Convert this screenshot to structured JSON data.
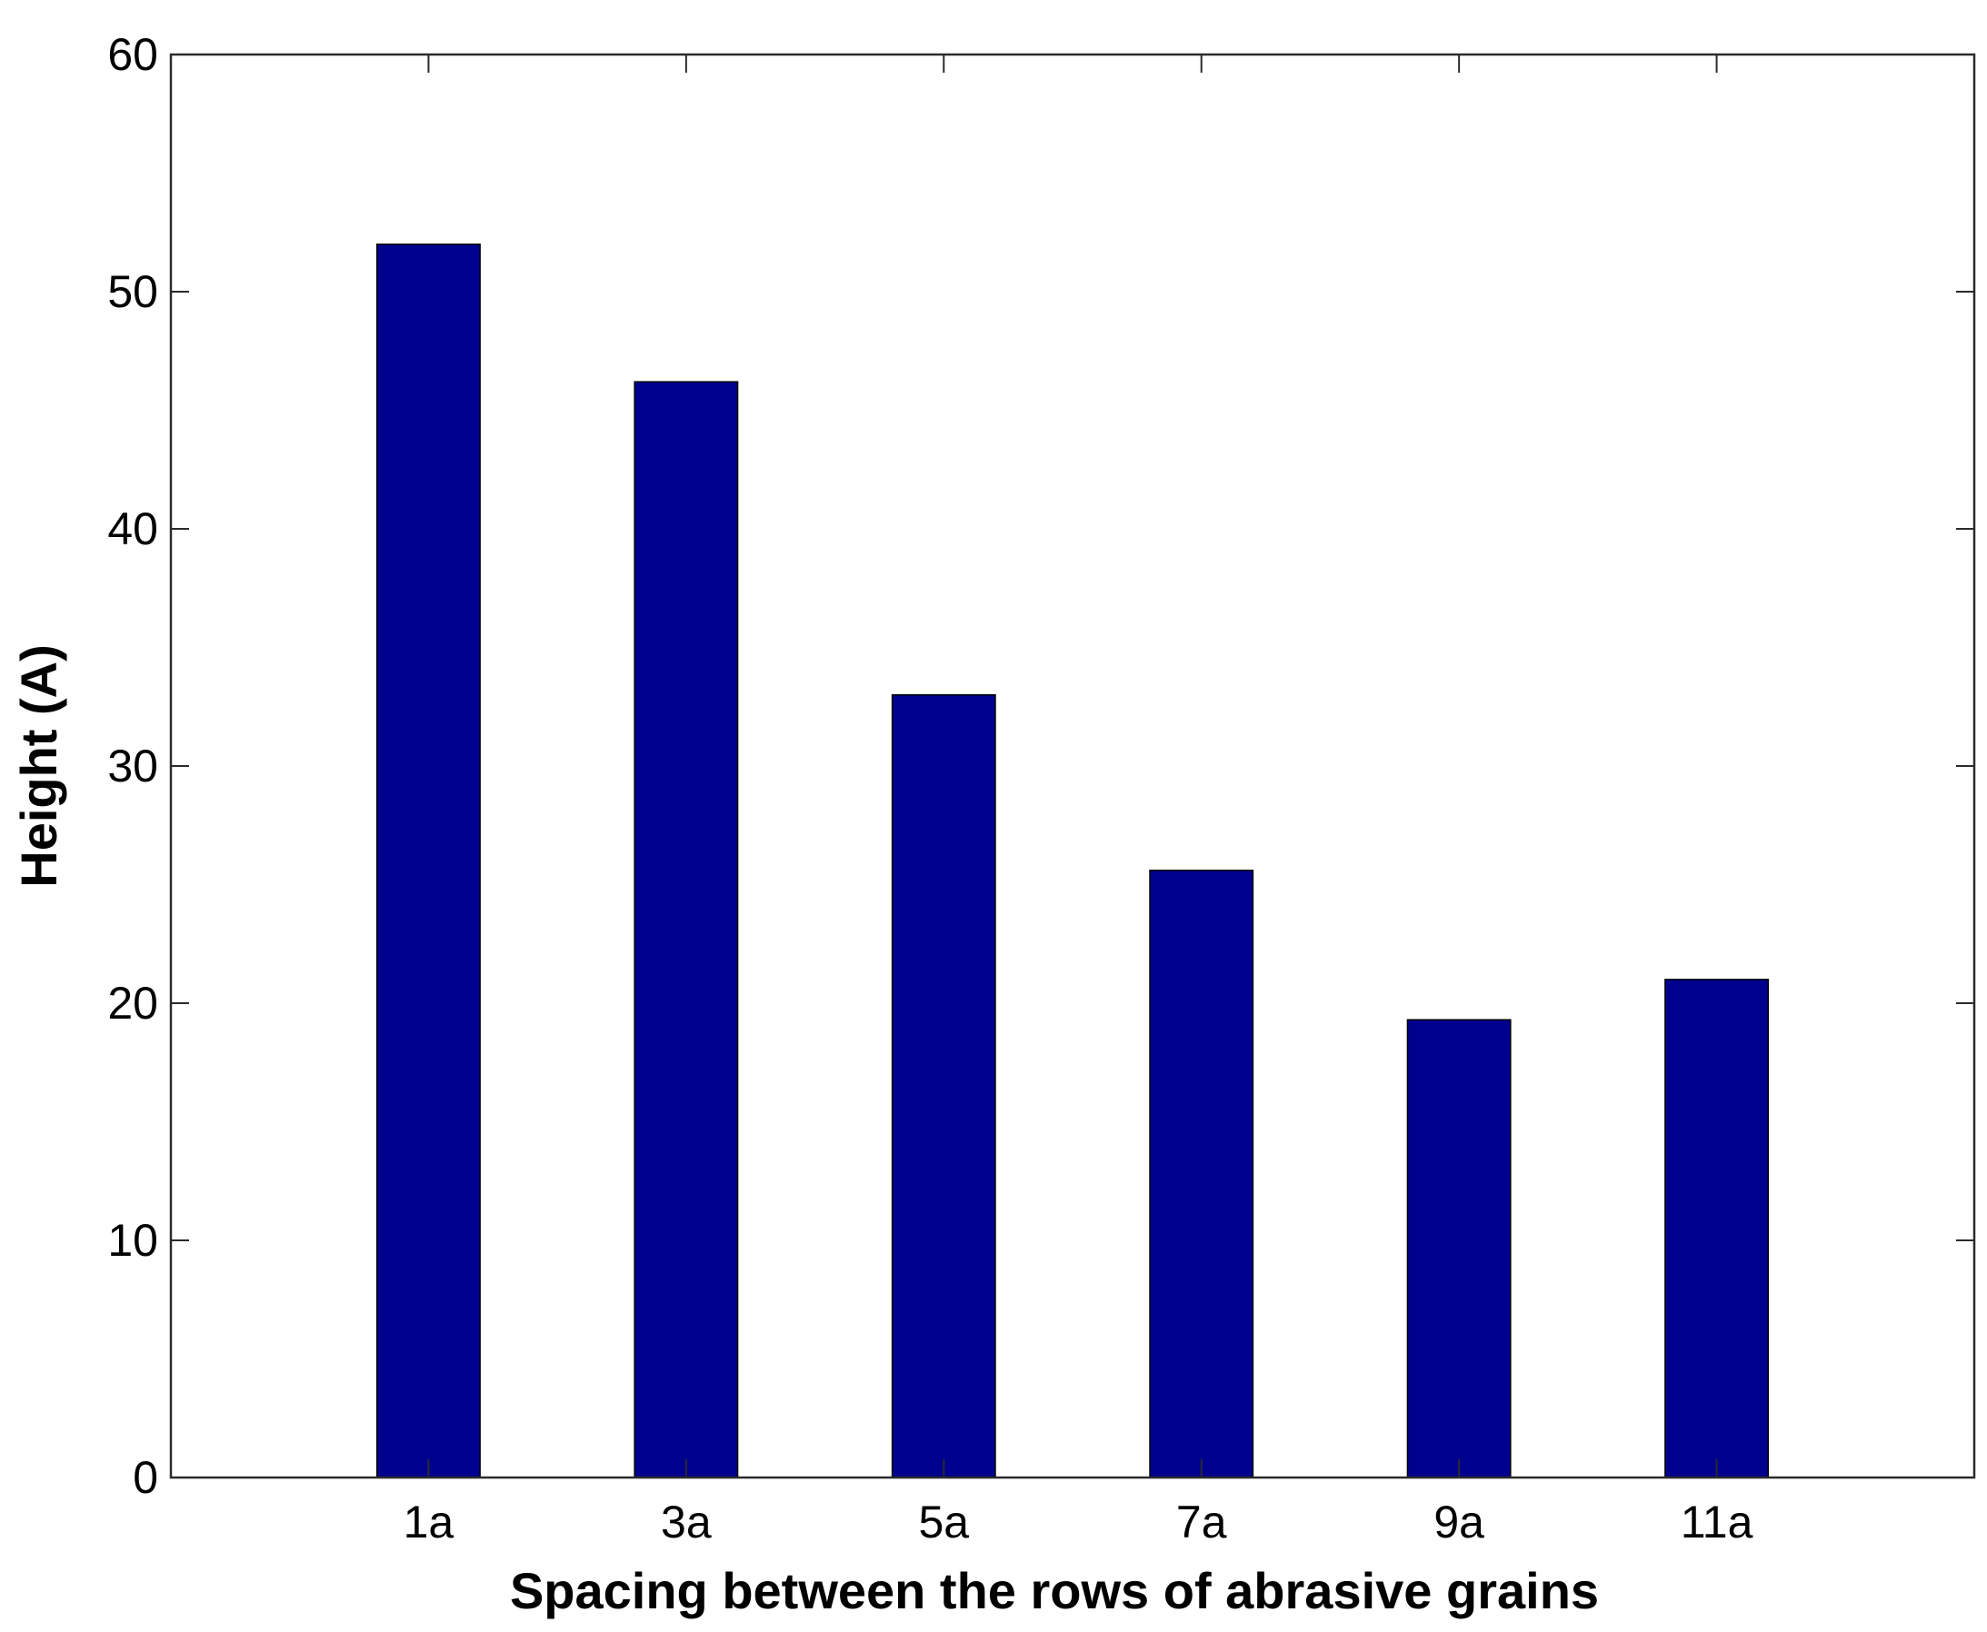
{
  "chart_data": {
    "type": "bar",
    "xlabel": "Spacing between the rows of abrasive grains",
    "ylabel": "Height (A)",
    "categories": [
      "1a",
      "3a",
      "5a",
      "7a",
      "9a",
      "11a"
    ],
    "values": [
      52,
      46.2,
      33,
      25.6,
      19.3,
      21
    ],
    "ylim": [
      0,
      60
    ],
    "yticks": [
      0,
      10,
      20,
      30,
      40,
      50,
      60
    ],
    "xlim": [
      0,
      7
    ],
    "grid": false,
    "colors": {
      "bar": "#00008F",
      "bar_edge": "#000000",
      "axes": "#2b2b2b"
    }
  }
}
